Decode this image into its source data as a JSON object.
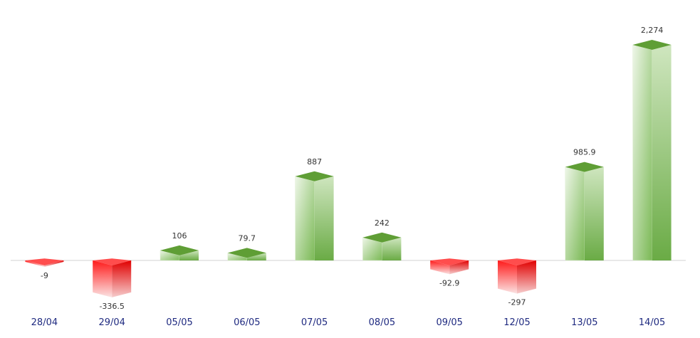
{
  "chart_data": {
    "type": "bar",
    "title": "",
    "xlabel": "",
    "ylabel": "",
    "categories": [
      "28/04",
      "29/04",
      "05/05",
      "06/05",
      "07/05",
      "08/05",
      "09/05",
      "12/05",
      "13/05",
      "14/05"
    ],
    "values": [
      -9,
      -336.5,
      106,
      79.7,
      887,
      242,
      -92.9,
      -297,
      985.9,
      2274
    ],
    "value_labels": [
      "-9",
      "-336.5",
      "106",
      "79.7",
      "887",
      "242",
      "-92.9",
      "-297",
      "985.9",
      "2,274"
    ],
    "ylim": [
      -400,
      2400
    ],
    "grid": false,
    "legend": "none",
    "colors": {
      "positive": "#7bb956",
      "positive_light": "#eef6e8",
      "positive_top": "#5f9e35",
      "negative": "#ff1a1a",
      "negative_light": "#fbe3e3",
      "category_text": "#1f2a80",
      "zero_line": "#d0d0d0"
    }
  }
}
